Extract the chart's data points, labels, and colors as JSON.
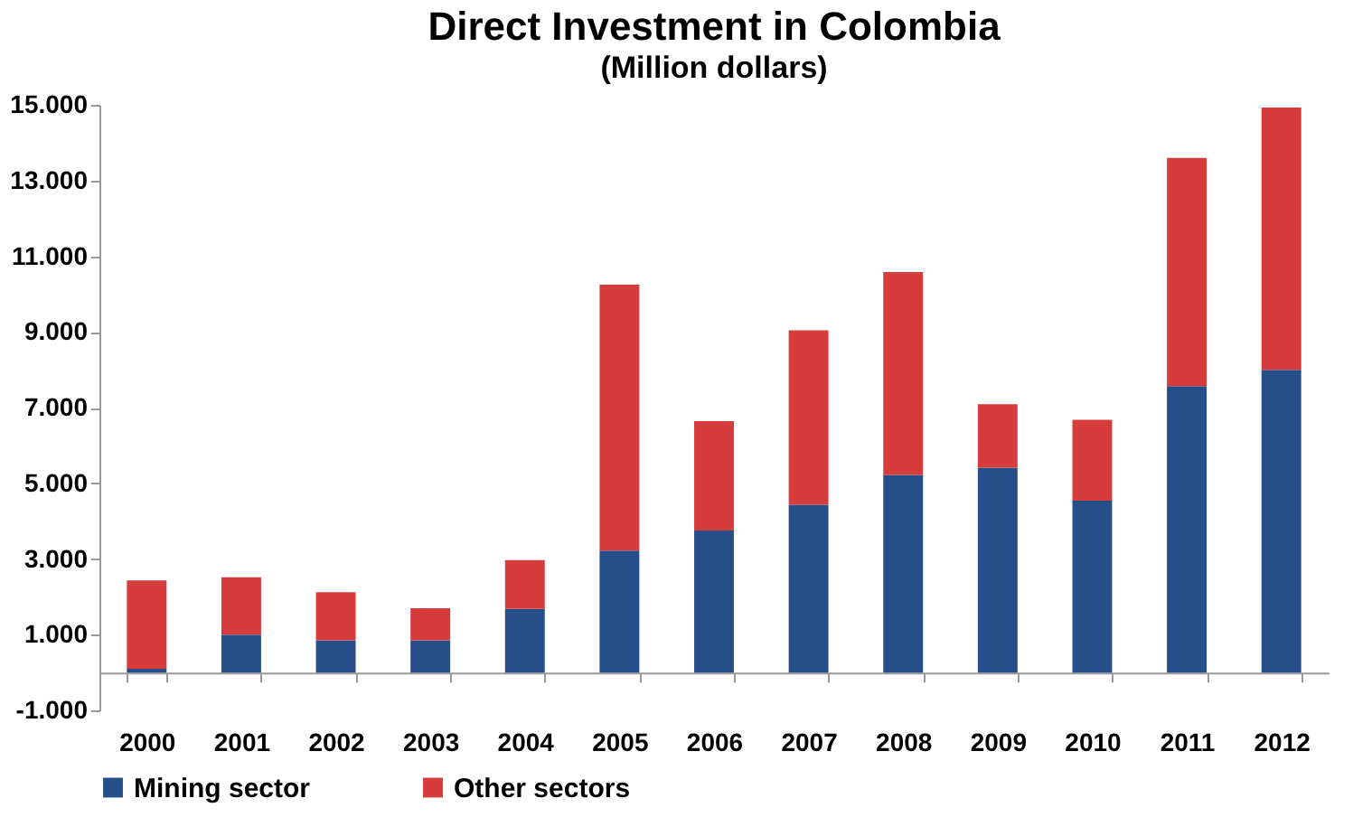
{
  "chart_data": {
    "type": "bar",
    "title": "Direct Investment in Colombia",
    "subtitle": "(Million dollars)",
    "categories": [
      "2000",
      "2001",
      "2002",
      "2003",
      "2004",
      "2005",
      "2006",
      "2007",
      "2008",
      "2009",
      "2010",
      "2011",
      "2012"
    ],
    "series": [
      {
        "name": "Mining sector",
        "color": "#264f8a",
        "values": [
          100,
          1000,
          850,
          850,
          1680,
          3220,
          3750,
          4430,
          5220,
          5410,
          4540,
          7570,
          8000
        ]
      },
      {
        "name": "Other sectors",
        "color": "#d63c3c",
        "values": [
          2330,
          1515,
          1270,
          850,
          1290,
          7025,
          2890,
          4610,
          5360,
          1680,
          2140,
          6030,
          6930
        ]
      }
    ],
    "stacked": true,
    "ylim": [
      -1000,
      15000
    ],
    "yticks": [
      {
        "value": -1000,
        "label": "-1.000"
      },
      {
        "value": 1000,
        "label": "1.000"
      },
      {
        "value": 3000,
        "label": "3.000"
      },
      {
        "value": 5000,
        "label": "5.000"
      },
      {
        "value": 7000,
        "label": "7.000"
      },
      {
        "value": 9000,
        "label": "9.000"
      },
      {
        "value": 11000,
        "label": "11.000"
      },
      {
        "value": 13000,
        "label": "13.000"
      },
      {
        "value": 15000,
        "label": "15.000"
      }
    ],
    "grid": false,
    "legend": "bottom"
  }
}
